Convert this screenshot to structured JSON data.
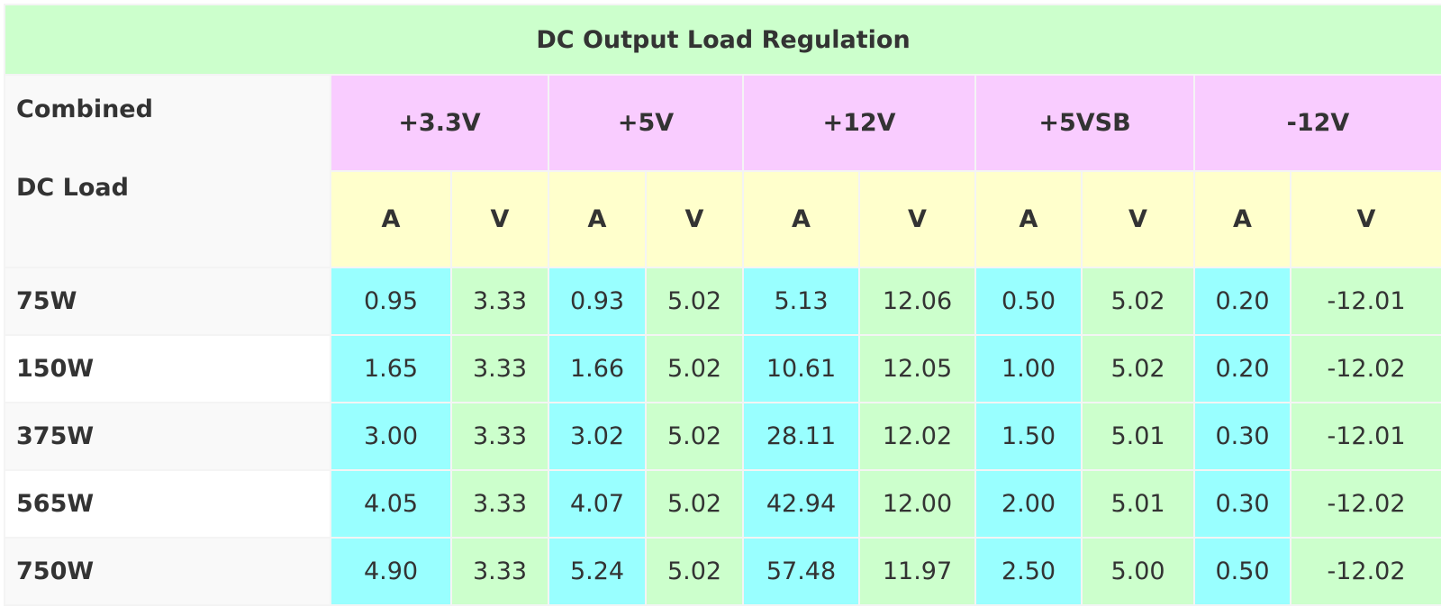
{
  "title": "DC Output Load Regulation",
  "corner_label": {
    "line1": "Combined",
    "line2": "DC Load"
  },
  "rails": [
    "+3.3V",
    "+5V",
    "+12V",
    "+5VSB",
    "-12V"
  ],
  "units": [
    "A",
    "V",
    "A",
    "V",
    "A",
    "V",
    "A",
    "V",
    "A",
    "V"
  ],
  "rows": [
    {
      "load": "75W",
      "values": [
        "0.95",
        "3.33",
        "0.93",
        "5.02",
        "5.13",
        "12.06",
        "0.50",
        "5.02",
        "0.20",
        "-12.01"
      ]
    },
    {
      "load": "150W",
      "values": [
        "1.65",
        "3.33",
        "1.66",
        "5.02",
        "10.61",
        "12.05",
        "1.00",
        "5.02",
        "0.20",
        "-12.02"
      ]
    },
    {
      "load": "375W",
      "values": [
        "3.00",
        "3.33",
        "3.02",
        "5.02",
        "28.11",
        "12.02",
        "1.50",
        "5.01",
        "0.30",
        "-12.01"
      ]
    },
    {
      "load": "565W",
      "values": [
        "4.05",
        "3.33",
        "4.07",
        "5.02",
        "42.94",
        "12.00",
        "2.00",
        "5.01",
        "0.30",
        "-12.02"
      ]
    },
    {
      "load": "750W",
      "values": [
        "4.90",
        "3.33",
        "5.24",
        "5.02",
        "57.48",
        "11.97",
        "2.50",
        "5.00",
        "0.50",
        "-12.02"
      ]
    }
  ],
  "colors": {
    "title_bg": "#ccffcc",
    "rail_bg": "#f9ccff",
    "unit_bg": "#ffffcc",
    "amp_bg": "#99ffff",
    "volt_bg": "#ccffcc"
  }
}
